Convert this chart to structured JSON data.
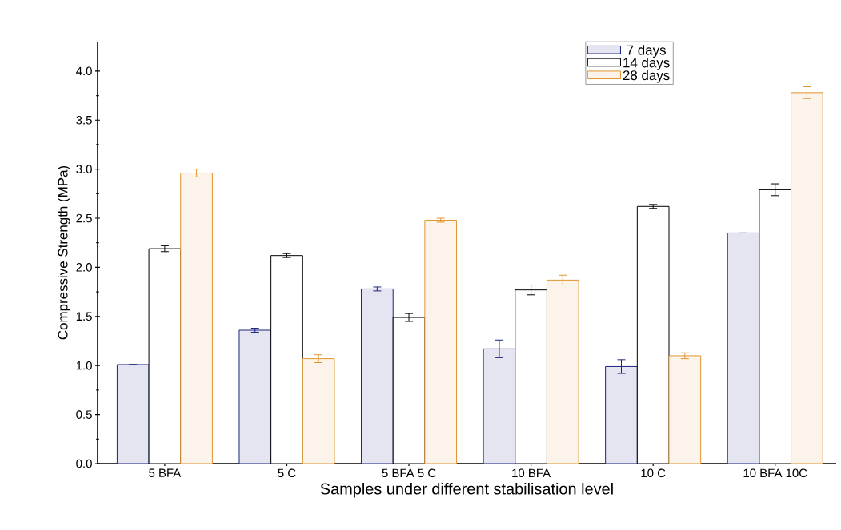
{
  "chart_data": {
    "type": "bar",
    "xlabel": "Samples under different stabilisation level",
    "ylabel": "Compressive Strength (MPa)",
    "categories": [
      "5 BFA",
      "5 C",
      "5 BFA 5 C",
      "10 BFA",
      "10 C",
      "10 BFA 10C"
    ],
    "series": [
      {
        "name": "7 days",
        "color": "#1a237e",
        "values": [
          1.01,
          1.36,
          1.78,
          1.17,
          0.99,
          2.35
        ],
        "errors": [
          null,
          0.02,
          0.02,
          0.09,
          0.07,
          null
        ]
      },
      {
        "name": "14 days",
        "color": "#000000",
        "values": [
          2.19,
          2.12,
          1.49,
          1.77,
          2.62,
          2.79
        ],
        "errors": [
          0.03,
          0.02,
          0.04,
          0.05,
          0.02,
          0.06
        ]
      },
      {
        "name": "28 days",
        "color": "#e0952e",
        "values": [
          2.96,
          1.07,
          2.48,
          1.87,
          1.1,
          3.78
        ],
        "errors": [
          0.04,
          0.04,
          0.02,
          0.05,
          0.03,
          0.06
        ]
      }
    ],
    "ylim": [
      0,
      4.3
    ],
    "yticks": [
      {
        "value": 0,
        "label": "0.0"
      },
      0.5,
      {
        "value": 1,
        "label": "1.0"
      },
      1.5,
      {
        "value": 2,
        "label": "2.0"
      },
      2.5,
      {
        "value": 3,
        "label": "3.0"
      },
      3.5,
      {
        "value": 4,
        "label": "4.0"
      }
    ],
    "legend": "top right",
    "grid": false
  }
}
